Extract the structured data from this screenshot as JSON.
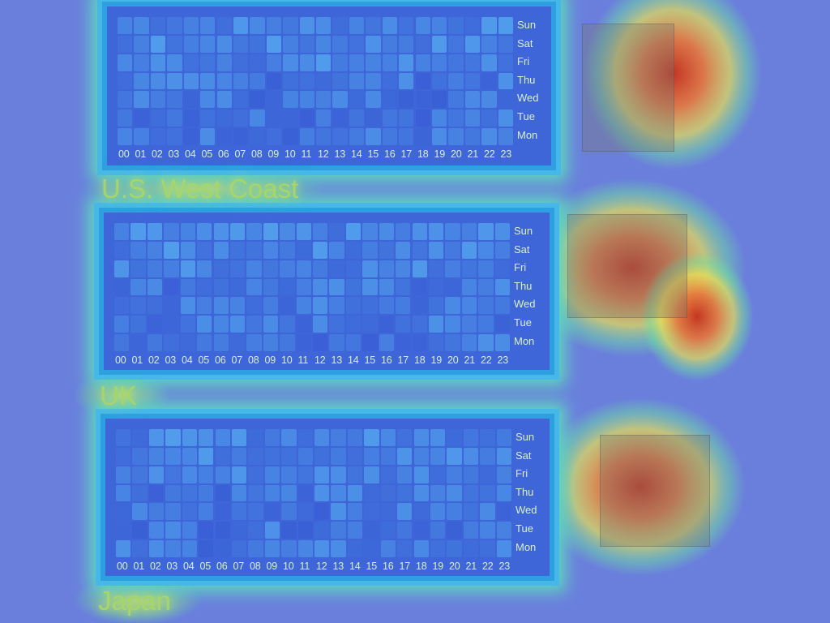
{
  "day_labels": [
    "Sun",
    "Sat",
    "Fri",
    "Thu",
    "Wed",
    "Tue",
    "Mon"
  ],
  "hour_labels": [
    "00",
    "01",
    "02",
    "03",
    "04",
    "05",
    "06",
    "07",
    "08",
    "09",
    "10",
    "11",
    "12",
    "13",
    "14",
    "15",
    "16",
    "17",
    "18",
    "19",
    "20",
    "21",
    "22",
    "23"
  ],
  "regions": [
    {
      "title": "U.S. West Coast"
    },
    {
      "title": "UK"
    },
    {
      "title": "Japan"
    }
  ],
  "colors": {
    "background": "#6a7fdc",
    "panel": "#3f66d8",
    "cell_low": "#3a5fd6",
    "cell_high": "#55a8f0",
    "hot": "#e0603a",
    "title": "#a8d46a"
  }
}
